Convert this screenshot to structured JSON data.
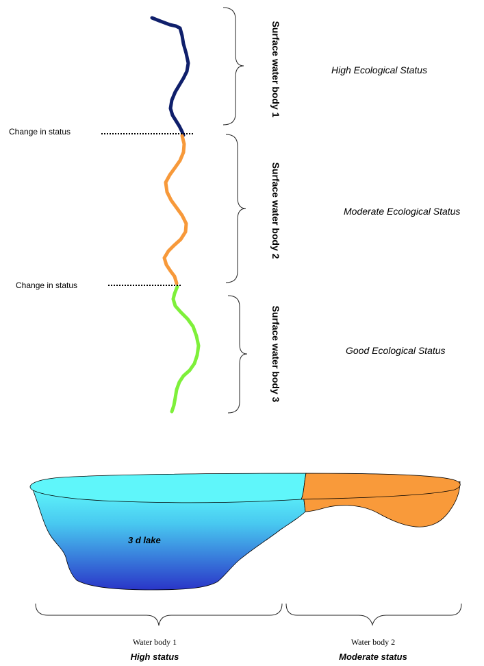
{
  "colors": {
    "high": "#0f1f6b",
    "moderate": "#f7993a",
    "good": "#7ef03a",
    "lake_surface": "#5ff6fa",
    "lake_deep": "#2a35c8",
    "lake_moderate": "#f99a3a"
  },
  "river": {
    "segments": [
      {
        "vertical_label": "Surface water body 1",
        "status_label": "High Ecological Status"
      },
      {
        "vertical_label": "Surface water body 2",
        "status_label": "Moderate Ecological Status"
      },
      {
        "vertical_label": "Surface water body 3",
        "status_label": "Good Ecological Status"
      }
    ],
    "boundaries": [
      {
        "label": "Change in status"
      },
      {
        "label": "Change in status"
      }
    ]
  },
  "lake": {
    "label": "3 d lake",
    "bodies": [
      {
        "name": "Water body 1",
        "status": "High status"
      },
      {
        "name": "Water body 2",
        "status": "Moderate status"
      }
    ]
  }
}
